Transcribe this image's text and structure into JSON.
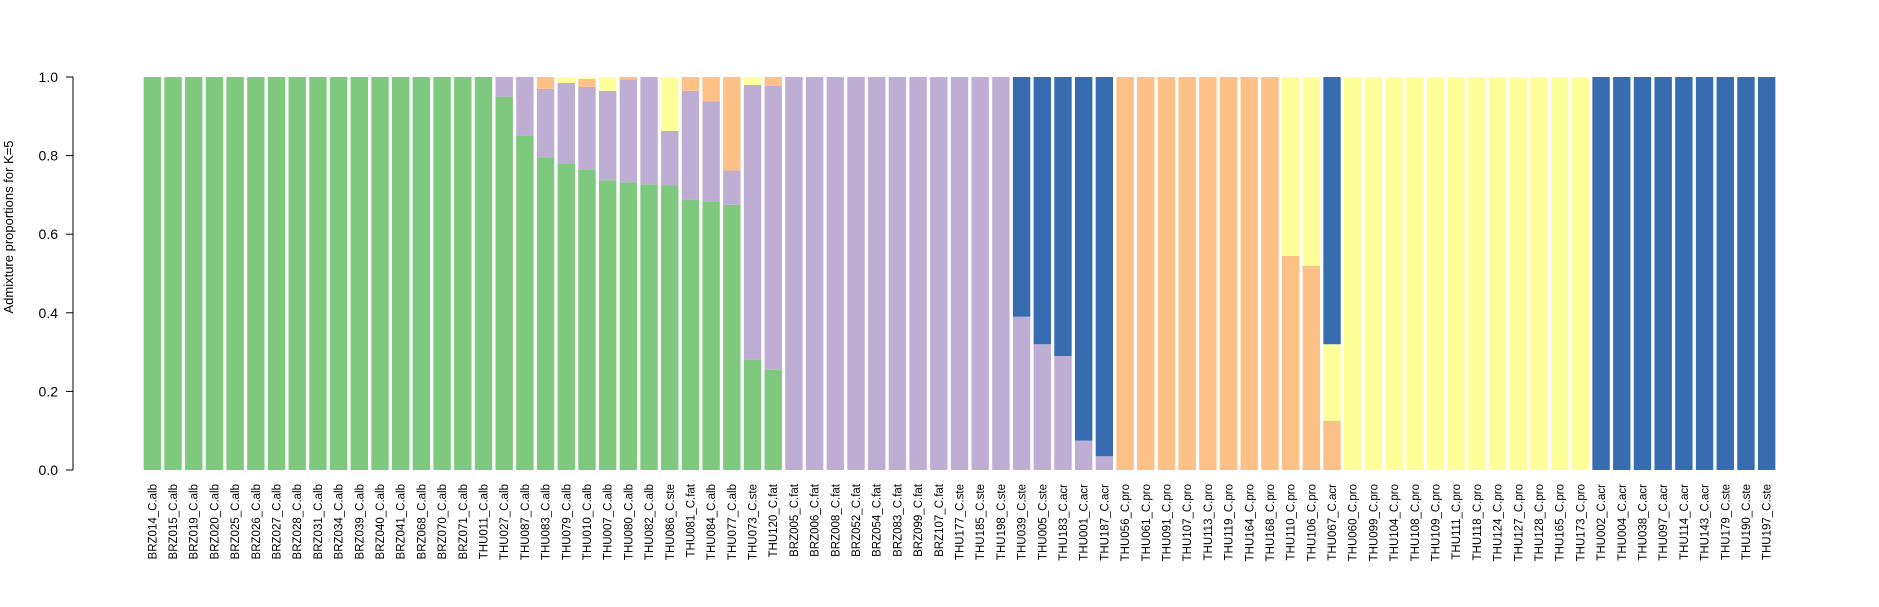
{
  "chart_data": {
    "type": "bar",
    "stacked": true,
    "title": "",
    "xlabel": "",
    "ylabel": "Admixture proportions for K=5",
    "ylim": [
      0,
      1
    ],
    "yticks": [
      "0.0",
      "0.2",
      "0.4",
      "0.6",
      "0.8",
      "1.0"
    ],
    "grid": false,
    "legend": "none",
    "categories": [
      "BRZ014_C.alb",
      "BRZ015_C.alb",
      "BRZ019_C.alb",
      "BRZ020_C.alb",
      "BRZ025_C.alb",
      "BRZ026_C.alb",
      "BRZ027_C.alb",
      "BRZ028_C.alb",
      "BRZ031_C.alb",
      "BRZ034_C.alb",
      "BRZ039_C.alb",
      "BRZ040_C.alb",
      "BRZ041_C.alb",
      "BRZ068_C.alb",
      "BRZ070_C.alb",
      "BRZ071_C.alb",
      "THU011_C.alb",
      "THU027_C.alb",
      "THU087_C.alb",
      "THU083_C.alb",
      "THU079_C.alb",
      "THU010_C.alb",
      "THU007_C.alb",
      "THU080_C.alb",
      "THU082_C.alb",
      "THU086_C.ste",
      "THU081_C.fat",
      "THU084_C.alb",
      "THU077_C.alb",
      "THU073_C.ste",
      "THU120_C.fat",
      "BRZ005_C.fat",
      "BRZ006_C.fat",
      "BRZ008_C.fat",
      "BRZ052_C.fat",
      "BRZ054_C.fat",
      "BRZ083_C.fat",
      "BRZ099_C.fat",
      "BRZ107_C.fat",
      "THU177_C.ste",
      "THU185_C.ste",
      "THU198_C.ste",
      "THU039_C.ste",
      "THU005_C.ste",
      "THU183_C.acr",
      "THU001_C.acr",
      "THU187_C.acr",
      "THU056_C.pro",
      "THU061_C.pro",
      "THU091_C.pro",
      "THU107_C.pro",
      "THU113_C.pro",
      "THU119_C.pro",
      "THU164_C.pro",
      "THU168_C.pro",
      "THU110_C.pro",
      "THU106_C.pro",
      "THU067_C.acr",
      "THU060_C.pro",
      "THU099_C.pro",
      "THU104_C.pro",
      "THU108_C.pro",
      "THU109_C.pro",
      "THU111_C.pro",
      "THU118_C.pro",
      "THU124_C.pro",
      "THU127_C.pro",
      "THU128_C.pro",
      "THU165_C.pro",
      "THU173_C.pro",
      "THU002_C.acr",
      "THU004_C.acr",
      "THU038_C.acr",
      "THU097_C.acr",
      "THU114_C.acr",
      "THU143_C.acr",
      "THU179_C.ste",
      "THU190_C.ste",
      "THU197_C.ste"
    ],
    "series": [
      {
        "color": "#7fc97f",
        "values": [
          1,
          1,
          1,
          1,
          1,
          1,
          1,
          1,
          1,
          1,
          1,
          1,
          1,
          1,
          1,
          1,
          1,
          0.95,
          0.85,
          0.795,
          0.78,
          0.765,
          0.737,
          0.732,
          0.727,
          0.725,
          0.688,
          0.683,
          0.675,
          0.28,
          0.255,
          0,
          0,
          0,
          0,
          0,
          0,
          0,
          0,
          0,
          0,
          0,
          0,
          0,
          0,
          0,
          0,
          0,
          0,
          0,
          0,
          0,
          0,
          0,
          0,
          0,
          0,
          0,
          0,
          0,
          0,
          0,
          0,
          0,
          0,
          0,
          0,
          0,
          0,
          0,
          0,
          0,
          0,
          0,
          0,
          0,
          0,
          0,
          0
        ]
      },
      {
        "color": "#beaed4",
        "values": [
          0,
          0,
          0,
          0,
          0,
          0,
          0,
          0,
          0,
          0,
          0,
          0,
          0,
          0,
          0,
          0,
          0,
          0.05,
          0.15,
          0.175,
          0.205,
          0.21,
          0.228,
          0.262,
          0.273,
          0.138,
          0.277,
          0.255,
          0.087,
          0.7,
          0.722,
          1,
          1,
          1,
          1,
          1,
          1,
          1,
          1,
          1,
          1,
          1,
          0.39,
          0.32,
          0.29,
          0.075,
          0.035,
          0,
          0,
          0,
          0,
          0,
          0,
          0,
          0,
          0,
          0,
          0,
          0,
          0,
          0,
          0,
          0,
          0,
          0,
          0,
          0,
          0,
          0,
          0,
          0,
          0,
          0,
          0,
          0,
          0,
          0,
          0,
          0
        ]
      },
      {
        "color": "#fdc086",
        "values": [
          0,
          0,
          0,
          0,
          0,
          0,
          0,
          0,
          0,
          0,
          0,
          0,
          0,
          0,
          0,
          0,
          0,
          0,
          0,
          0.03,
          0,
          0.02,
          0,
          0.006,
          0,
          0,
          0.035,
          0.062,
          0.238,
          0,
          0.023,
          0,
          0,
          0,
          0,
          0,
          0,
          0,
          0,
          0,
          0,
          0,
          0,
          0,
          0,
          0,
          0,
          1,
          1,
          1,
          1,
          1,
          1,
          1,
          1,
          0.545,
          0.52,
          0.125,
          0,
          0,
          0,
          0,
          0,
          0,
          0,
          0,
          0,
          0,
          0,
          0,
          0,
          0,
          0,
          0,
          0,
          0,
          0,
          0,
          0
        ]
      },
      {
        "color": "#ffff99",
        "values": [
          0,
          0,
          0,
          0,
          0,
          0,
          0,
          0,
          0,
          0,
          0,
          0,
          0,
          0,
          0,
          0,
          0,
          0,
          0,
          0,
          0.015,
          0.005,
          0.035,
          0,
          0,
          0.137,
          0,
          0,
          0,
          0.02,
          0,
          0,
          0,
          0,
          0,
          0,
          0,
          0,
          0,
          0,
          0,
          0,
          0,
          0,
          0,
          0,
          0,
          0,
          0,
          0,
          0,
          0,
          0,
          0,
          0,
          0.455,
          0.48,
          0.195,
          1,
          1,
          1,
          1,
          1,
          1,
          1,
          1,
          1,
          1,
          1,
          1,
          0,
          0,
          0,
          0,
          0,
          0,
          0,
          0,
          0
        ]
      },
      {
        "color": "#386cb0",
        "values": [
          0,
          0,
          0,
          0,
          0,
          0,
          0,
          0,
          0,
          0,
          0,
          0,
          0,
          0,
          0,
          0,
          0,
          0,
          0,
          0,
          0,
          0,
          0,
          0,
          0,
          0,
          0,
          0,
          0,
          0,
          0,
          0,
          0,
          0,
          0,
          0,
          0,
          0,
          0,
          0,
          0,
          0,
          0.61,
          0.68,
          0.71,
          0.925,
          0.965,
          0,
          0,
          0,
          0,
          0,
          0,
          0,
          0,
          0,
          0,
          0.68,
          0,
          0,
          0,
          0,
          0,
          0,
          0,
          0,
          0,
          0,
          0,
          0,
          1,
          1,
          1,
          1,
          1,
          1,
          1,
          1,
          1
        ]
      }
    ]
  }
}
